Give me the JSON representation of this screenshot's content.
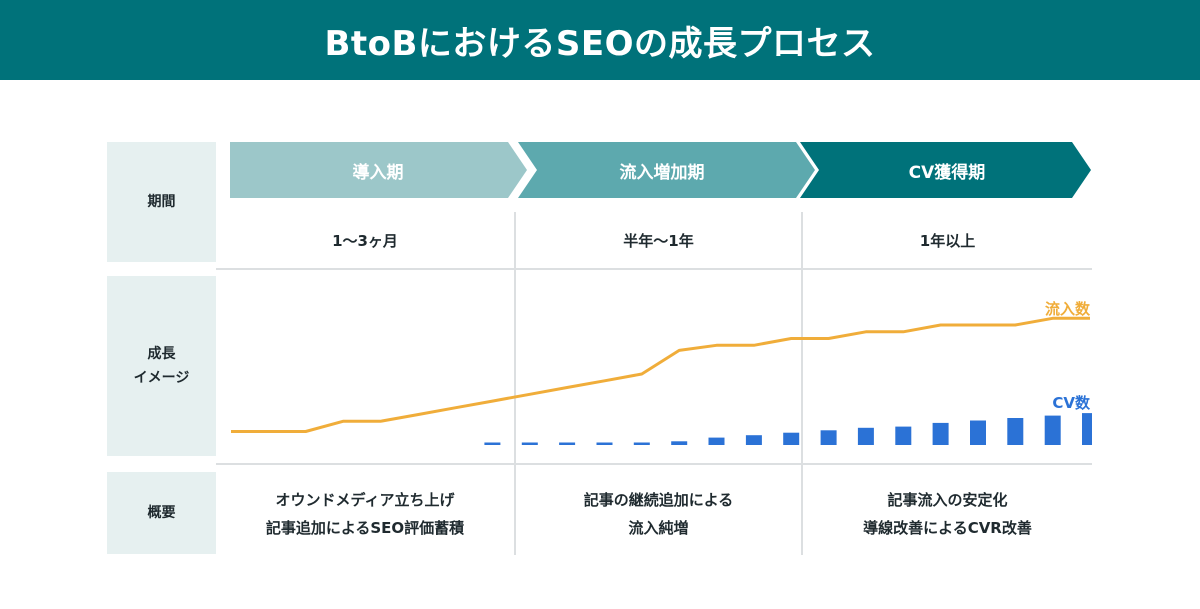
{
  "title": "BtoBにおけるSEOの成長プロセス",
  "row_labels": {
    "period": "期間",
    "growth_line1": "成長",
    "growth_line2": "イメージ",
    "summary": "概要"
  },
  "phases": [
    {
      "name": "導入期",
      "period": "1〜3ヶ月",
      "summary_line1": "オウンドメディア立ち上げ",
      "summary_line2": "記事追加によるSEO評価蓄積",
      "color": "#9cc7c9"
    },
    {
      "name": "流入増加期",
      "period": "半年〜1年",
      "summary_line1": "記事の継続追加による",
      "summary_line2": "流入純増",
      "color": "#5da9ae"
    },
    {
      "name": "CV獲得期",
      "period": "1年以上",
      "summary_line1": "記事流入の安定化",
      "summary_line2": "導線改善によるCVR改善",
      "color": "#00727a"
    }
  ],
  "colors": {
    "header": "#00727a",
    "label_bg": "#e6f0f0",
    "inflow": "#f0ad3a",
    "cv": "#2b72d6"
  },
  "chart_data": {
    "type": "line",
    "ylim": [
      0,
      100
    ],
    "x": [
      0,
      1,
      2,
      3,
      4,
      5,
      6,
      7,
      8,
      9,
      10,
      11,
      12,
      13,
      14,
      15,
      16,
      17,
      18,
      19,
      20,
      21,
      22,
      23
    ],
    "series": [
      {
        "name": "流入数",
        "values": [
          8,
          8,
          8,
          14,
          14,
          18,
          22,
          26,
          30,
          34,
          38,
          42,
          56,
          59,
          59,
          63,
          63,
          67,
          67,
          71,
          71,
          71,
          75,
          75
        ]
      },
      {
        "name": "CV数",
        "values": [
          null,
          null,
          null,
          null,
          null,
          null,
          null,
          1,
          1,
          1,
          1,
          1,
          1.5,
          3,
          4,
          5,
          6,
          7,
          7.5,
          9,
          10,
          11,
          12,
          13
        ]
      }
    ]
  }
}
